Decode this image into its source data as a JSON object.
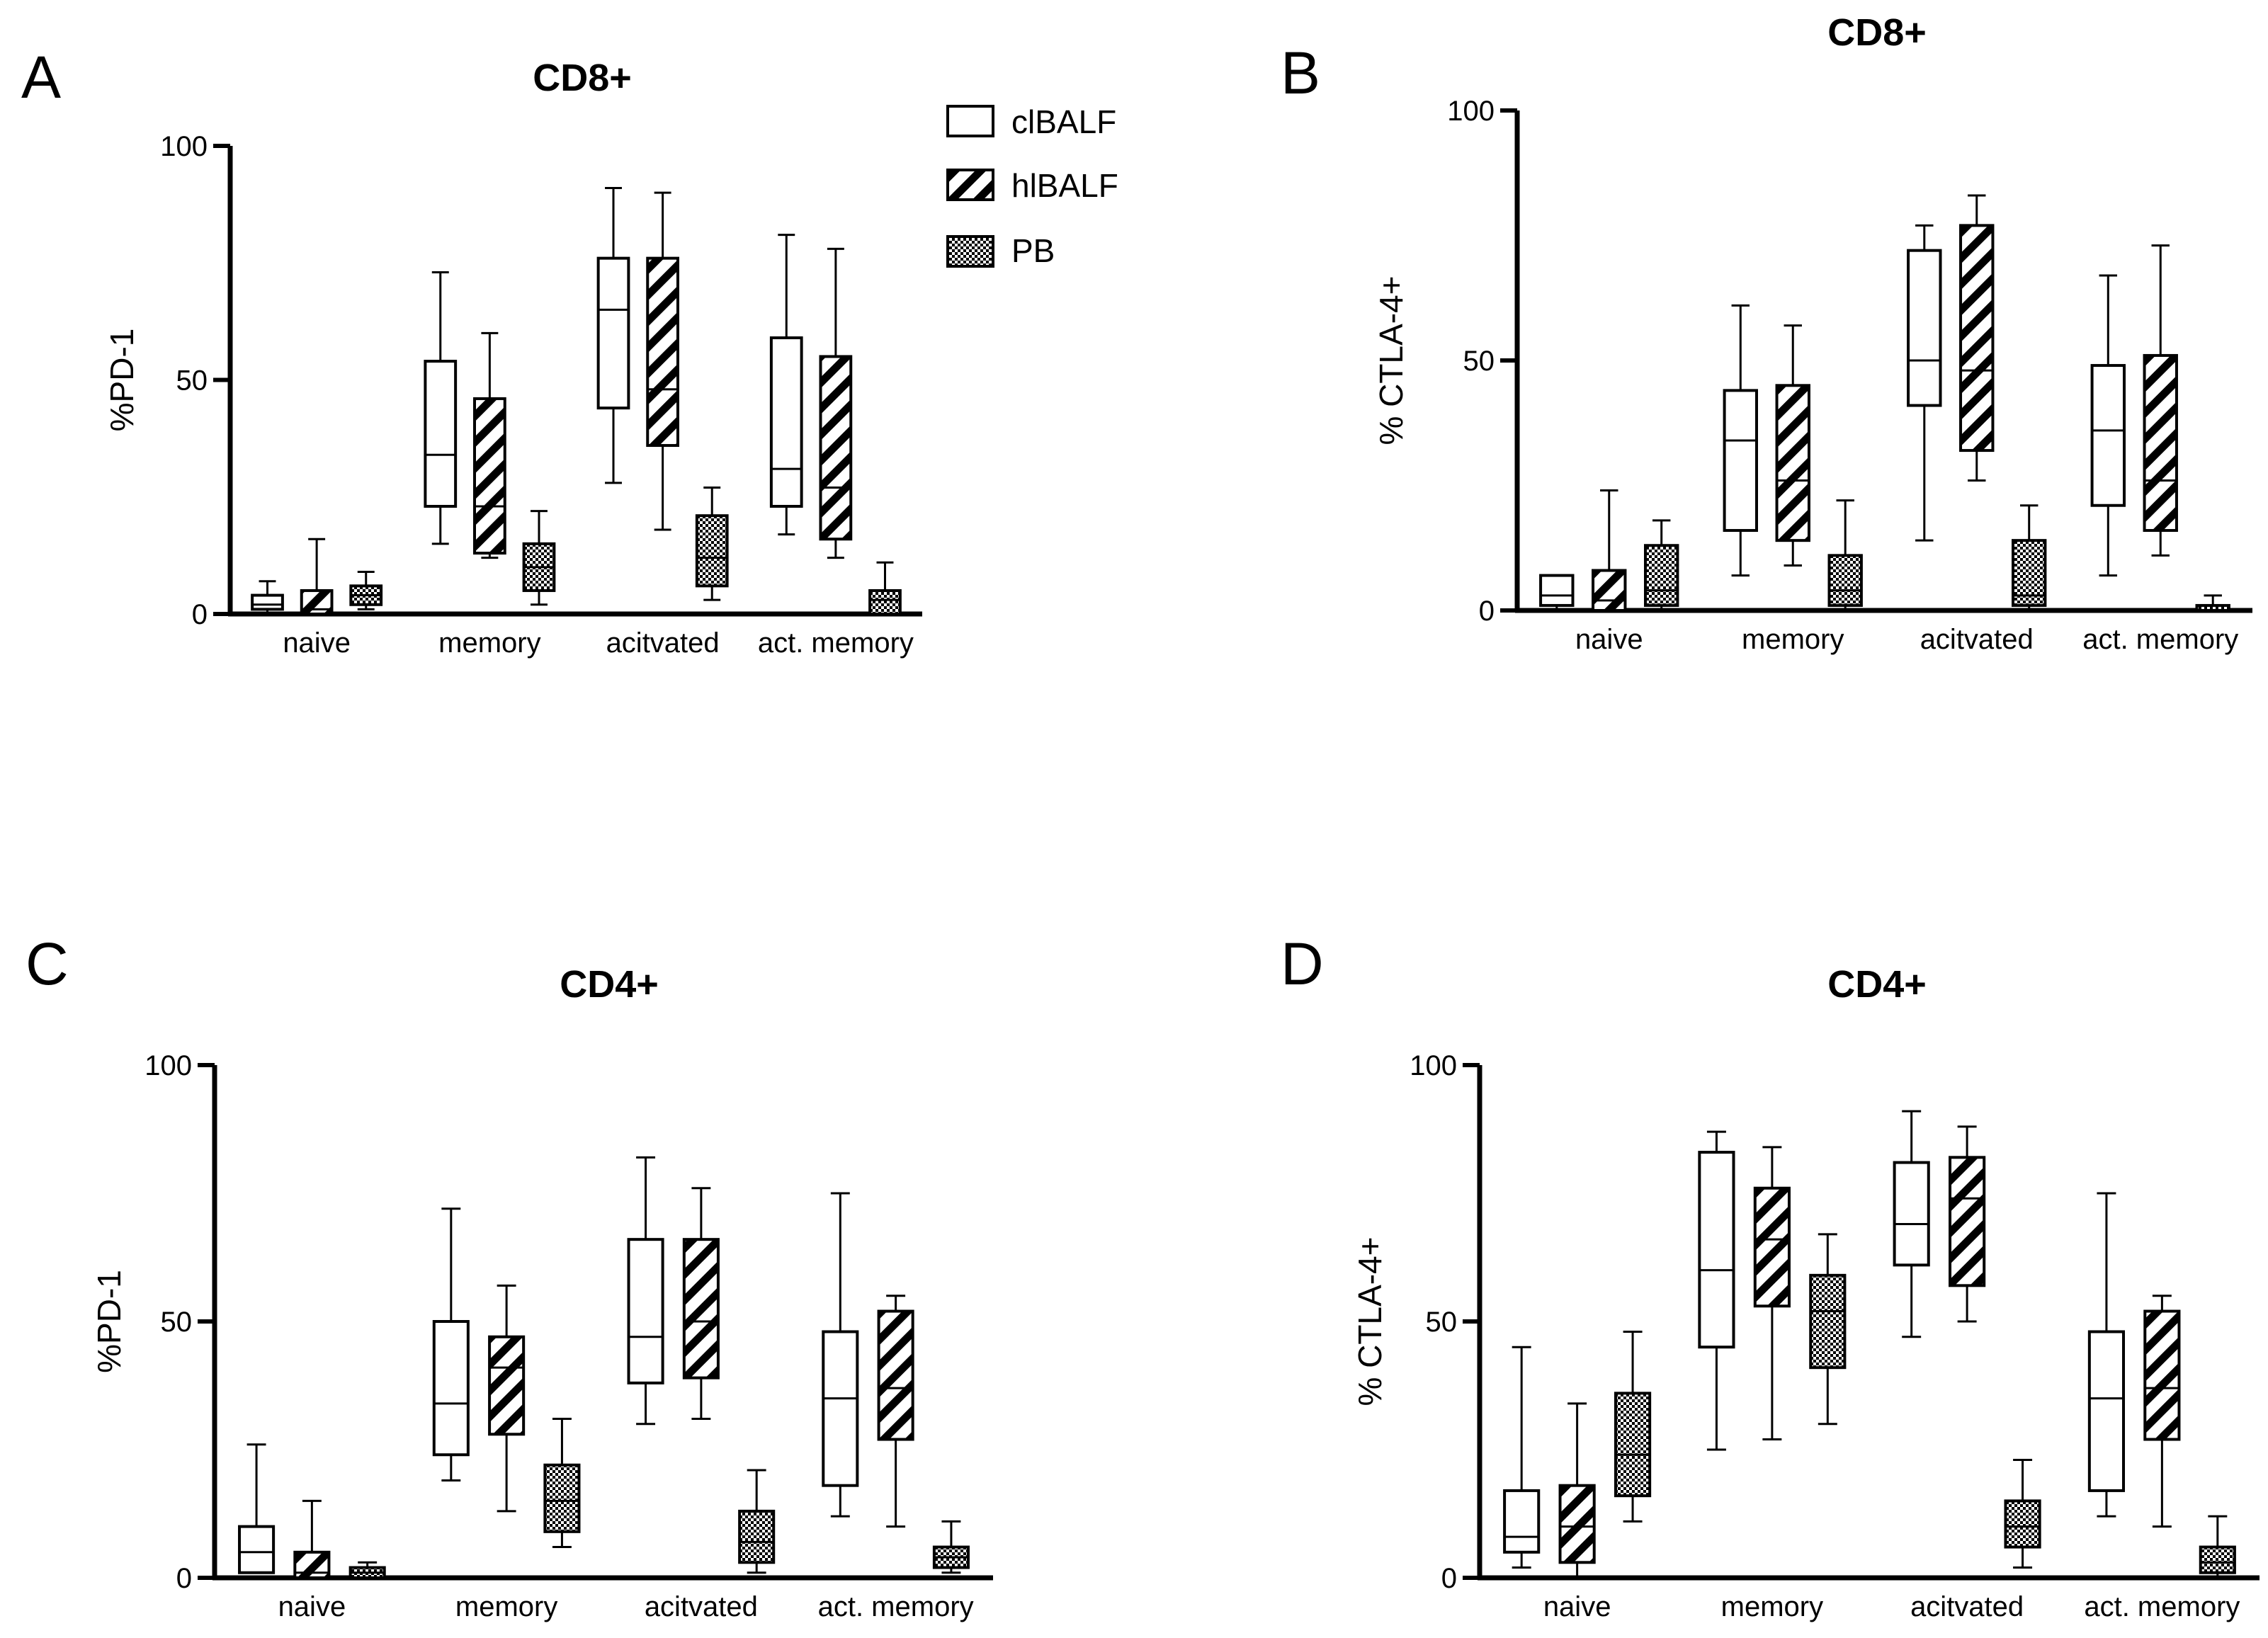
{
  "colors": {
    "ink": "#000000",
    "background": "#ffffff"
  },
  "legend": [
    {
      "label": "clBALF",
      "pattern": "white"
    },
    {
      "label": "hlBALF",
      "pattern": "hatch"
    },
    {
      "label": "PB",
      "pattern": "checker"
    }
  ],
  "chart_data": [
    {
      "type": "box",
      "panel": "A",
      "title": "CD8+",
      "ylabel": "%PD-1",
      "ylim": [
        0,
        100
      ],
      "yticks": [
        0,
        50,
        100
      ],
      "categories": [
        "naive",
        "memory",
        "acitvated",
        "act. memory"
      ],
      "series": [
        {
          "name": "clBALF",
          "boxes": [
            {
              "min": 0,
              "q1": 1,
              "median": 2,
              "q3": 4,
              "max": 7
            },
            {
              "min": 15,
              "q1": 23,
              "median": 34,
              "q3": 54,
              "max": 73
            },
            {
              "min": 28,
              "q1": 44,
              "median": 65,
              "q3": 76,
              "max": 91
            },
            {
              "min": 17,
              "q1": 23,
              "median": 31,
              "q3": 59,
              "max": 81
            }
          ]
        },
        {
          "name": "hlBALF",
          "boxes": [
            {
              "min": 0,
              "q1": 0,
              "median": 1,
              "q3": 5,
              "max": 16
            },
            {
              "min": 12,
              "q1": 13,
              "median": 23,
              "q3": 46,
              "max": 60
            },
            {
              "min": 18,
              "q1": 36,
              "median": 48,
              "q3": 76,
              "max": 90
            },
            {
              "min": 12,
              "q1": 16,
              "median": 27,
              "q3": 55,
              "max": 78
            }
          ]
        },
        {
          "name": "PB",
          "boxes": [
            {
              "min": 1,
              "q1": 2,
              "median": 4,
              "q3": 6,
              "max": 9
            },
            {
              "min": 2,
              "q1": 5,
              "median": 10,
              "q3": 15,
              "max": 22
            },
            {
              "min": 3,
              "q1": 6,
              "median": 12,
              "q3": 21,
              "max": 27
            },
            {
              "min": 0,
              "q1": 0,
              "median": 3,
              "q3": 5,
              "max": 11
            }
          ]
        }
      ]
    },
    {
      "type": "box",
      "panel": "B",
      "title": "CD8+",
      "ylabel": "% CTLA-4+",
      "ylim": [
        0,
        100
      ],
      "yticks": [
        0,
        50,
        100
      ],
      "categories": [
        "naive",
        "memory",
        "acitvated",
        "act. memory"
      ],
      "series": [
        {
          "name": "clBALF",
          "boxes": [
            {
              "min": 0,
              "q1": 1,
              "median": 3,
              "q3": 7,
              "max": 7
            },
            {
              "min": 7,
              "q1": 16,
              "median": 34,
              "q3": 44,
              "max": 61
            },
            {
              "min": 14,
              "q1": 41,
              "median": 50,
              "q3": 72,
              "max": 77
            },
            {
              "min": 7,
              "q1": 21,
              "median": 36,
              "q3": 49,
              "max": 67
            }
          ]
        },
        {
          "name": "hlBALF",
          "boxes": [
            {
              "min": 0,
              "q1": 0,
              "median": 2,
              "q3": 8,
              "max": 24
            },
            {
              "min": 9,
              "q1": 14,
              "median": 26,
              "q3": 45,
              "max": 57
            },
            {
              "min": 26,
              "q1": 32,
              "median": 48,
              "q3": 77,
              "max": 83
            },
            {
              "min": 11,
              "q1": 16,
              "median": 26,
              "q3": 51,
              "max": 73
            }
          ]
        },
        {
          "name": "PB",
          "boxes": [
            {
              "min": 0,
              "q1": 1,
              "median": 4,
              "q3": 13,
              "max": 18
            },
            {
              "min": 0,
              "q1": 1,
              "median": 4,
              "q3": 11,
              "max": 22
            },
            {
              "min": 0,
              "q1": 1,
              "median": 3,
              "q3": 14,
              "max": 21
            },
            {
              "min": 0,
              "q1": 0,
              "median": 1,
              "q3": 1,
              "max": 3
            }
          ]
        }
      ]
    },
    {
      "type": "box",
      "panel": "C",
      "title": "CD4+",
      "ylabel": "%PD-1",
      "ylim": [
        0,
        100
      ],
      "yticks": [
        0,
        50,
        100
      ],
      "categories": [
        "naive",
        "memory",
        "acitvated",
        "act. memory"
      ],
      "series": [
        {
          "name": "clBALF",
          "boxes": [
            {
              "min": 1,
              "q1": 1,
              "median": 5,
              "q3": 10,
              "max": 26
            },
            {
              "min": 19,
              "q1": 24,
              "median": 34,
              "q3": 50,
              "max": 72
            },
            {
              "min": 30,
              "q1": 38,
              "median": 47,
              "q3": 66,
              "max": 82
            },
            {
              "min": 12,
              "q1": 18,
              "median": 35,
              "q3": 48,
              "max": 75
            }
          ]
        },
        {
          "name": "hlBALF",
          "boxes": [
            {
              "min": 0,
              "q1": 0,
              "median": 1,
              "q3": 5,
              "max": 15
            },
            {
              "min": 13,
              "q1": 28,
              "median": 41,
              "q3": 47,
              "max": 57
            },
            {
              "min": 31,
              "q1": 39,
              "median": 50,
              "q3": 66,
              "max": 76
            },
            {
              "min": 10,
              "q1": 27,
              "median": 37,
              "q3": 52,
              "max": 55
            }
          ]
        },
        {
          "name": "PB",
          "boxes": [
            {
              "min": 0,
              "q1": 0,
              "median": 1,
              "q3": 2,
              "max": 3
            },
            {
              "min": 6,
              "q1": 9,
              "median": 15,
              "q3": 22,
              "max": 31
            },
            {
              "min": 1,
              "q1": 3,
              "median": 7,
              "q3": 13,
              "max": 21
            },
            {
              "min": 1,
              "q1": 2,
              "median": 4,
              "q3": 6,
              "max": 11
            }
          ]
        }
      ]
    },
    {
      "type": "box",
      "panel": "D",
      "title": "CD4+",
      "ylabel": "% CTLA-4+",
      "ylim": [
        0,
        100
      ],
      "yticks": [
        0,
        50,
        100
      ],
      "categories": [
        "naive",
        "memory",
        "acitvated",
        "act. memory"
      ],
      "series": [
        {
          "name": "clBALF",
          "boxes": [
            {
              "min": 2,
              "q1": 5,
              "median": 8,
              "q3": 17,
              "max": 45
            },
            {
              "min": 25,
              "q1": 45,
              "median": 60,
              "q3": 83,
              "max": 87
            },
            {
              "min": 47,
              "q1": 61,
              "median": 69,
              "q3": 81,
              "max": 91
            },
            {
              "min": 12,
              "q1": 17,
              "median": 35,
              "q3": 48,
              "max": 75
            }
          ]
        },
        {
          "name": "hlBALF",
          "boxes": [
            {
              "min": 0,
              "q1": 3,
              "median": 10,
              "q3": 18,
              "max": 34
            },
            {
              "min": 27,
              "q1": 53,
              "median": 66,
              "q3": 76,
              "max": 84
            },
            {
              "min": 50,
              "q1": 57,
              "median": 74,
              "q3": 82,
              "max": 88
            },
            {
              "min": 10,
              "q1": 27,
              "median": 37,
              "q3": 52,
              "max": 55
            }
          ]
        },
        {
          "name": "PB",
          "boxes": [
            {
              "min": 11,
              "q1": 16,
              "median": 24,
              "q3": 36,
              "max": 48
            },
            {
              "min": 30,
              "q1": 41,
              "median": 52,
              "q3": 59,
              "max": 67
            },
            {
              "min": 2,
              "q1": 6,
              "median": 10,
              "q3": 15,
              "max": 23
            },
            {
              "min": 0,
              "q1": 1,
              "median": 3,
              "q3": 6,
              "max": 12
            }
          ]
        }
      ]
    }
  ]
}
